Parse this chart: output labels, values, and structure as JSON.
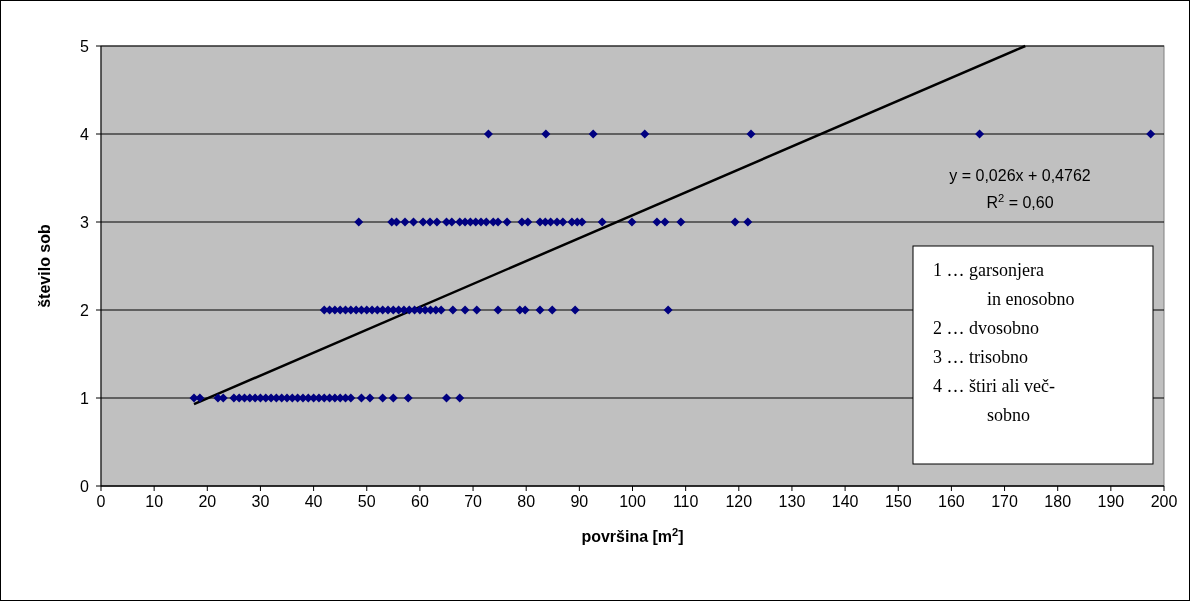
{
  "chart_data": {
    "type": "scatter",
    "xlabel": "površina [m$^{2}$]",
    "ylabel": "število sob",
    "xlim": [
      0,
      200
    ],
    "xticks": [
      0,
      10,
      20,
      30,
      40,
      50,
      60,
      70,
      80,
      90,
      100,
      110,
      120,
      130,
      140,
      150,
      160,
      170,
      180,
      190,
      200
    ],
    "ylim": [
      0,
      5
    ],
    "yticks": [
      0,
      1,
      2,
      3,
      4,
      5
    ],
    "grid": "y",
    "marker": "diamond",
    "series": [
      {
        "color": "#000080",
        "x": [
          17.5,
          18.6,
          22,
          23,
          25,
          26,
          27,
          28,
          29,
          30,
          31,
          32,
          33,
          34,
          35,
          36,
          37,
          38,
          39,
          40,
          41,
          42,
          43,
          44,
          45,
          46,
          47,
          49,
          50.6,
          53,
          55,
          57.8,
          65,
          67.5
        ],
        "values": [
          1,
          1,
          1,
          1,
          1,
          1,
          1,
          1,
          1,
          1,
          1,
          1,
          1,
          1,
          1,
          1,
          1,
          1,
          1,
          1,
          1,
          1,
          1,
          1,
          1,
          1,
          1,
          1,
          1,
          1,
          1,
          1,
          1,
          1
        ]
      },
      {
        "color": "#000080",
        "x": [
          42,
          43,
          44,
          45,
          46,
          47,
          48,
          49,
          50,
          51,
          52,
          53,
          54,
          55,
          56,
          57,
          58,
          59,
          60,
          61,
          62,
          63,
          64,
          66.2,
          68.5,
          70.7,
          74.7,
          78.8,
          79.8,
          82.6,
          84.9,
          89.2,
          106.7
        ],
        "values": [
          2,
          2,
          2,
          2,
          2,
          2,
          2,
          2,
          2,
          2,
          2,
          2,
          2,
          2,
          2,
          2,
          2,
          2,
          2,
          2,
          2,
          2,
          2,
          2,
          2,
          2,
          2,
          2,
          2,
          2,
          2,
          2,
          2
        ]
      },
      {
        "color": "#000080",
        "x": [
          48.5,
          54.7,
          55.6,
          57.2,
          58.8,
          60.6,
          61.9,
          63.2,
          65,
          66,
          67.5,
          68.5,
          69.5,
          70.5,
          71.5,
          72.5,
          73.8,
          74.7,
          76.4,
          79.2,
          80.3,
          82.6,
          83.6,
          84.6,
          85.8,
          86.9,
          88.6,
          89.6,
          90.5,
          94.3,
          99.9,
          104.6,
          106.1,
          109.1,
          119.3,
          121.7
        ],
        "values": [
          3,
          3,
          3,
          3,
          3,
          3,
          3,
          3,
          3,
          3,
          3,
          3,
          3,
          3,
          3,
          3,
          3,
          3,
          3,
          3,
          3,
          3,
          3,
          3,
          3,
          3,
          3,
          3,
          3,
          3,
          3,
          3,
          3,
          3,
          3,
          3
        ]
      },
      {
        "color": "#000080",
        "x": [
          72.9,
          83.7,
          92.6,
          102.3,
          122.3,
          165.3,
          197.5
        ],
        "values": [
          4,
          4,
          4,
          4,
          4,
          4,
          4
        ]
      },
      {
        "type": "line",
        "color": "#000000",
        "marker": "none",
        "x": [
          17.5,
          173.9
        ],
        "values": [
          0.93,
          5
        ]
      }
    ],
    "annotations": [
      "y = 0,026x + 0,4762",
      "R$^{2}$ = 0,60",
      "1 … garsonjera",
      "in enosobno",
      "2 … dvosobno",
      "3 … trisobno",
      "4 … štiri ali več-",
      "sobno"
    ]
  }
}
